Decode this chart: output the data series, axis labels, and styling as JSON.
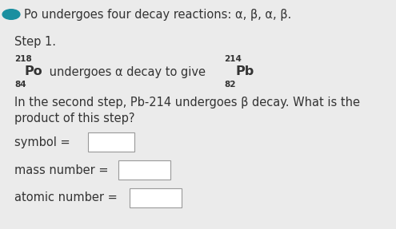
{
  "bg_color": "#ebebeb",
  "bullet_color": "#1a8fa0",
  "text_color": "#333333",
  "line1": "Po undergoes four decay reactions: α, β, α, β.",
  "step_text": "Step 1.",
  "decay_middle": " undergoes α decay to give ",
  "po_main": "Po",
  "po_mass": "218",
  "po_atomic": "84",
  "pb_main": "Pb",
  "pb_mass": "214",
  "pb_atomic": "82",
  "line4a": "In the second step, Pb-214 undergoes β decay. What is the",
  "line4b": "product of this step?",
  "symbol_label": "symbol =",
  "mass_label": "mass number =",
  "atomic_label": "atomic number =",
  "main_fontsize": 10.5,
  "bold_fontsize": 11.5,
  "small_fontsize": 7.5,
  "box_color": "#ffffff",
  "box_edge_color": "#999999"
}
